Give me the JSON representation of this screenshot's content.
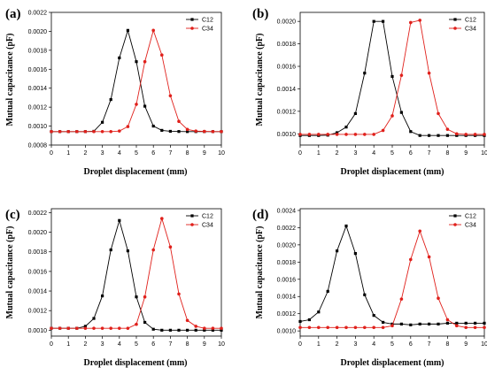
{
  "chart_data": [
    {
      "type": "line",
      "panel_label": "(a)",
      "xlabel": "Droplet displacement (mm)",
      "ylabel": "Mutual capacitance (pF)",
      "xlim": [
        0,
        10
      ],
      "ylim": [
        0.0008,
        0.0022
      ],
      "xticks": [
        "0",
        "1",
        "2",
        "3",
        "4",
        "5",
        "6",
        "7",
        "8",
        "9",
        "10"
      ],
      "yticks": [
        "0.0008",
        "0.0010",
        "0.0012",
        "0.0014",
        "0.0016",
        "0.0018",
        "0.0020",
        "0.0022"
      ],
      "legend_position": "top-right",
      "series": [
        {
          "name": "C12",
          "color": "#000000",
          "marker": "square",
          "x": [
            0,
            0.5,
            1,
            1.5,
            2,
            2.5,
            3,
            3.5,
            4,
            4.5,
            5,
            5.5,
            6,
            6.5,
            7,
            7.5,
            8,
            8.5,
            9,
            9.5,
            10
          ],
          "y": [
            0.000942,
            0.000942,
            0.000942,
            0.000942,
            0.000942,
            0.000945,
            0.00104,
            0.00128,
            0.00172,
            0.00201,
            0.00168,
            0.00121,
            0.001,
            0.000955,
            0.000945,
            0.000943,
            0.000942,
            0.000942,
            0.000942,
            0.000942,
            0.000942
          ]
        },
        {
          "name": "C34",
          "color": "#e0201b",
          "marker": "circle",
          "x": [
            0,
            0.5,
            1,
            1.5,
            2,
            2.5,
            3,
            3.5,
            4,
            4.5,
            5,
            5.5,
            6,
            6.5,
            7,
            7.5,
            8,
            8.5,
            9,
            9.5,
            10
          ],
          "y": [
            0.000942,
            0.000942,
            0.000942,
            0.000942,
            0.000942,
            0.000942,
            0.000942,
            0.000942,
            0.000948,
            0.000995,
            0.00123,
            0.00168,
            0.00201,
            0.00175,
            0.00132,
            0.00105,
            0.000965,
            0.000948,
            0.000944,
            0.000942,
            0.000942
          ]
        }
      ]
    },
    {
      "type": "line",
      "panel_label": "(b)",
      "xlabel": "Droplet displacement (mm)",
      "ylabel": "Mutual capacitance (pF)",
      "xlim": [
        0,
        10
      ],
      "ylim": [
        0.0009,
        0.00208
      ],
      "xticks": [
        "0",
        "1",
        "2",
        "3",
        "4",
        "5",
        "6",
        "7",
        "8",
        "9",
        "10"
      ],
      "yticks": [
        "0.0010",
        "0.0012",
        "0.0014",
        "0.0016",
        "0.0018",
        "0.0020"
      ],
      "legend_position": "top-right",
      "series": [
        {
          "name": "C12",
          "color": "#000000",
          "marker": "square",
          "x": [
            0,
            0.5,
            1,
            1.5,
            2,
            2.5,
            3,
            3.5,
            4,
            4.5,
            5,
            5.5,
            6,
            6.5,
            7,
            7.5,
            8,
            8.5,
            9,
            9.5,
            10
          ],
          "y": [
            0.000985,
            0.000985,
            0.000985,
            0.000988,
            0.00101,
            0.00106,
            0.00118,
            0.00154,
            0.002,
            0.002,
            0.00151,
            0.00119,
            0.00102,
            0.000985,
            0.000985,
            0.000985,
            0.000985,
            0.000985,
            0.000985,
            0.000985,
            0.000985
          ]
        },
        {
          "name": "C34",
          "color": "#e0201b",
          "marker": "circle",
          "x": [
            0,
            0.5,
            1,
            1.5,
            2,
            2.5,
            3,
            3.5,
            4,
            4.5,
            5,
            5.5,
            6,
            6.5,
            7,
            7.5,
            8,
            8.5,
            9,
            9.5,
            10
          ],
          "y": [
            0.000995,
            0.000995,
            0.000995,
            0.000995,
            0.000995,
            0.000995,
            0.000995,
            0.000995,
            0.000995,
            0.00103,
            0.00116,
            0.00152,
            0.00199,
            0.00201,
            0.00154,
            0.00118,
            0.00104,
            0.001,
            0.000995,
            0.000995,
            0.000995
          ]
        }
      ]
    },
    {
      "type": "line",
      "panel_label": "(c)",
      "xlabel": "Droplet displacement (mm)",
      "ylabel": "Mutual capacitance (pF)",
      "xlim": [
        0,
        10
      ],
      "ylim": [
        0.00094,
        0.00224
      ],
      "xticks": [
        "0",
        "1",
        "2",
        "3",
        "4",
        "5",
        "6",
        "7",
        "8",
        "9",
        "10"
      ],
      "yticks": [
        "0.0010",
        "0.0012",
        "0.0014",
        "0.0016",
        "0.0018",
        "0.0020",
        "0.0022"
      ],
      "legend_position": "top-right",
      "series": [
        {
          "name": "C12",
          "color": "#000000",
          "marker": "square",
          "x": [
            0,
            0.5,
            1,
            1.5,
            2,
            2.5,
            3,
            3.5,
            4,
            4.5,
            5,
            5.5,
            6,
            6.5,
            7,
            7.5,
            8,
            8.5,
            9,
            9.5,
            10
          ],
          "y": [
            0.00102,
            0.00102,
            0.00102,
            0.00102,
            0.00104,
            0.00112,
            0.00135,
            0.00182,
            0.00212,
            0.00181,
            0.00134,
            0.00108,
            0.00101,
            0.001,
            0.001,
            0.001,
            0.001,
            0.001,
            0.001,
            0.001,
            0.001
          ]
        },
        {
          "name": "C34",
          "color": "#e0201b",
          "marker": "circle",
          "x": [
            0,
            0.5,
            1,
            1.5,
            2,
            2.5,
            3,
            3.5,
            4,
            4.5,
            5,
            5.5,
            6,
            6.5,
            7,
            7.5,
            8,
            8.5,
            9,
            9.5,
            10
          ],
          "y": [
            0.00102,
            0.00102,
            0.00102,
            0.00102,
            0.00102,
            0.00102,
            0.00102,
            0.00102,
            0.00102,
            0.00102,
            0.00106,
            0.00134,
            0.00182,
            0.00214,
            0.00185,
            0.00137,
            0.0011,
            0.00104,
            0.00102,
            0.00102,
            0.00102
          ]
        }
      ]
    },
    {
      "type": "line",
      "panel_label": "(d)",
      "xlabel": "Droplet displacement (mm)",
      "ylabel": "Mutual capacitance (pF)",
      "xlim": [
        0,
        10
      ],
      "ylim": [
        0.00094,
        0.00242
      ],
      "xticks": [
        "0",
        "1",
        "2",
        "3",
        "4",
        "5",
        "6",
        "7",
        "8",
        "9",
        "10"
      ],
      "yticks": [
        "0.0010",
        "0.0012",
        "0.0014",
        "0.0016",
        "0.0018",
        "0.0020",
        "0.0022",
        "0.0024"
      ],
      "legend_position": "top-right",
      "series": [
        {
          "name": "C12",
          "color": "#000000",
          "marker": "square",
          "x": [
            0,
            0.5,
            1,
            1.5,
            2,
            2.5,
            3,
            3.5,
            4,
            4.5,
            5,
            5.5,
            6,
            6.5,
            7,
            7.5,
            8,
            8.5,
            9,
            9.5,
            10
          ],
          "y": [
            0.00111,
            0.00113,
            0.00122,
            0.00146,
            0.00193,
            0.00222,
            0.0019,
            0.00142,
            0.00118,
            0.0011,
            0.00108,
            0.00108,
            0.00107,
            0.00108,
            0.00108,
            0.00108,
            0.00109,
            0.00109,
            0.00109,
            0.00109,
            0.00109
          ]
        },
        {
          "name": "C34",
          "color": "#e0201b",
          "marker": "circle",
          "x": [
            0,
            0.5,
            1,
            1.5,
            2,
            2.5,
            3,
            3.5,
            4,
            4.5,
            5,
            5.5,
            6,
            6.5,
            7,
            7.5,
            8,
            8.5,
            9,
            9.5,
            10
          ],
          "y": [
            0.00104,
            0.00104,
            0.00104,
            0.00104,
            0.00104,
            0.00104,
            0.00104,
            0.00104,
            0.00104,
            0.00104,
            0.00106,
            0.00137,
            0.00183,
            0.00216,
            0.00186,
            0.00138,
            0.00113,
            0.00106,
            0.00104,
            0.00104,
            0.00104
          ]
        }
      ]
    }
  ]
}
